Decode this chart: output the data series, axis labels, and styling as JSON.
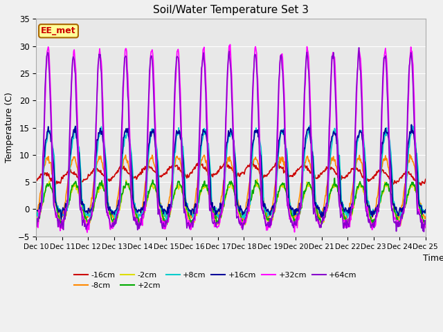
{
  "title": "Soil/Water Temperature Set 3",
  "xlabel": "Time",
  "ylabel": "Temperature (C)",
  "ylim": [
    -5,
    35
  ],
  "n_days": 15,
  "x_tick_labels": [
    "Dec 10",
    "Dec 11",
    "Dec 12",
    "Dec 13",
    "Dec 14",
    "Dec 15",
    "Dec 16",
    "Dec 17",
    "Dec 18",
    "Dec 19",
    "Dec 20",
    "Dec 21",
    "Dec 22",
    "Dec 23",
    "Dec 24",
    "Dec 25"
  ],
  "bg_color": "#e8e8e8",
  "series": [
    {
      "label": "-16cm",
      "color": "#cc0000",
      "lw": 1.2
    },
    {
      "label": "-8cm",
      "color": "#ff8800",
      "lw": 1.2
    },
    {
      "label": "-2cm",
      "color": "#dddd00",
      "lw": 1.2
    },
    {
      "label": "+2cm",
      "color": "#00aa00",
      "lw": 1.2
    },
    {
      "label": "+8cm",
      "color": "#00cccc",
      "lw": 1.2
    },
    {
      "label": "+16cm",
      "color": "#000099",
      "lw": 1.2
    },
    {
      "label": "+32cm",
      "color": "#ff00ff",
      "lw": 1.2
    },
    {
      "label": "+64cm",
      "color": "#8800cc",
      "lw": 1.2
    }
  ],
  "watermark": "EE_met",
  "watermark_color": "#cc0000",
  "watermark_bg": "#ffff99",
  "watermark_border": "#aa6600",
  "fig_w": 6.4,
  "fig_h": 4.8,
  "dpi": 100
}
